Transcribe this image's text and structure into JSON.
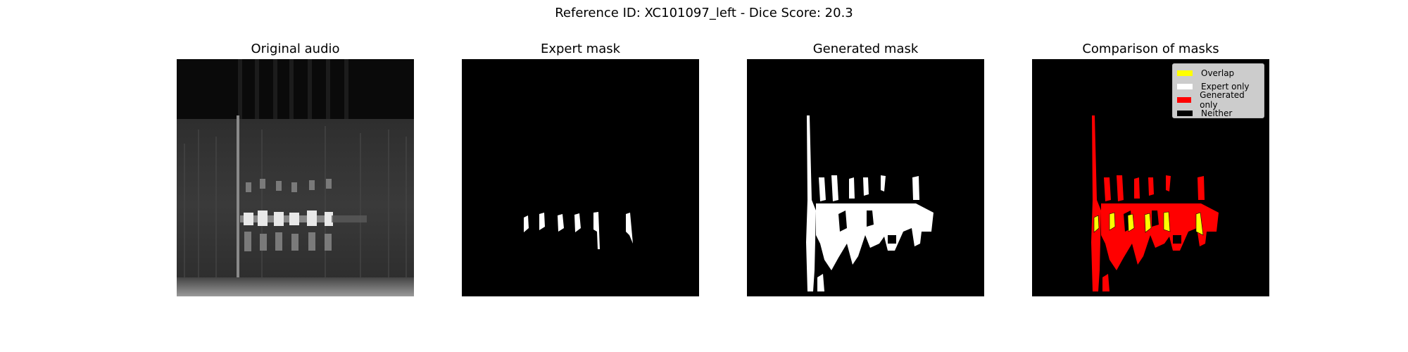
{
  "figure": {
    "title": "Reference ID: XC101097_left - Dice Score: 20.3"
  },
  "panels": [
    {
      "title": "Original audio"
    },
    {
      "title": "Expert mask"
    },
    {
      "title": "Generated mask"
    },
    {
      "title": "Comparison of masks"
    }
  ],
  "legend": {
    "items": [
      {
        "label": "Overlap",
        "color": "#ffff00"
      },
      {
        "label": "Expert only",
        "color": "#ffffff"
      },
      {
        "label": "Generated only",
        "color": "#ff0000"
      },
      {
        "label": "Neither",
        "color": "#000000"
      }
    ]
  },
  "colors": {
    "background": "#000000",
    "mask": "#ffffff",
    "overlap": "#ffff00",
    "generated_only": "#ff0000"
  }
}
